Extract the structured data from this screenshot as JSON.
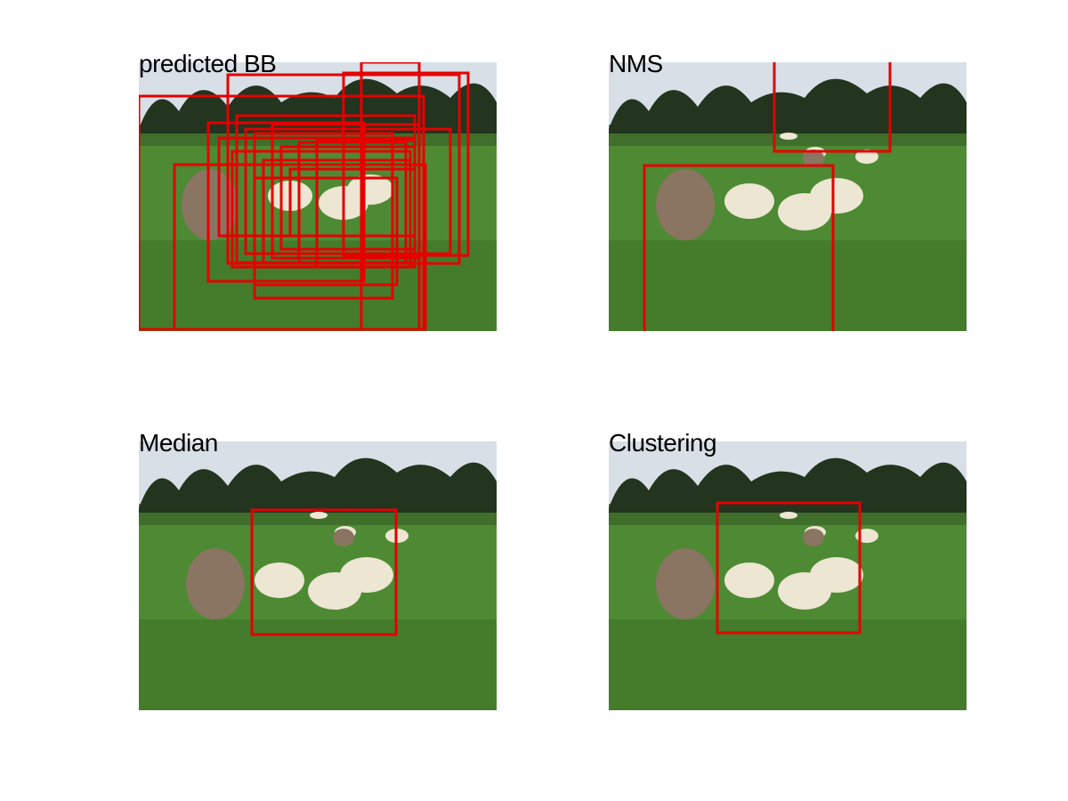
{
  "figure": {
    "panels": [
      {
        "title": "predicted BB"
      },
      {
        "title": "NMS"
      },
      {
        "title": "Median"
      },
      {
        "title": "Clustering"
      }
    ]
  },
  "colors": {
    "box": "#e50000",
    "sky": "#d8dfe6",
    "grass": "#4e8a33",
    "grass_dark": "#3a6e26",
    "trees": "#23341f",
    "stone": "#8a7462",
    "sheep": "#ece6d3"
  }
}
